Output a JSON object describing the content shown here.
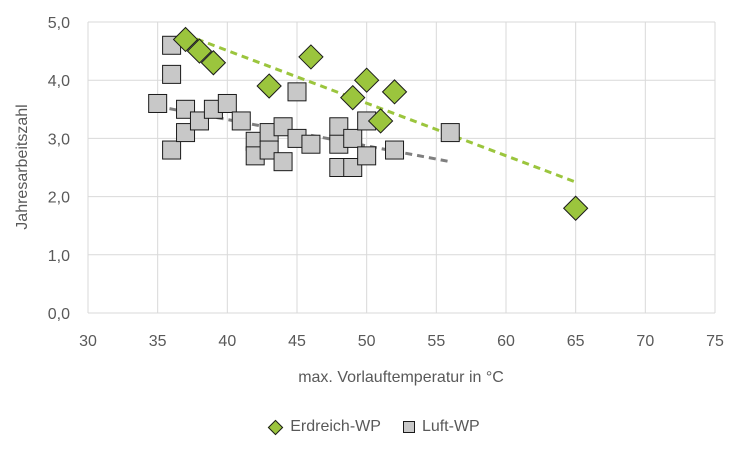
{
  "chart_data": {
    "type": "scatter",
    "xlabel": "max. Vorlauftemperatur in °C",
    "ylabel": "Jahresarbeitszahl",
    "xlim": [
      30,
      75
    ],
    "ylim": [
      0,
      5
    ],
    "x_ticks": [
      "30",
      "35",
      "40",
      "45",
      "50",
      "55",
      "60",
      "65",
      "70",
      "75"
    ],
    "y_ticks": [
      "0,0",
      "1,0",
      "2,0",
      "3,0",
      "4,0",
      "5,0"
    ],
    "grid": "vertical and horizontal",
    "legend_position": "bottom",
    "series": [
      {
        "name": "Erdreich-WP",
        "marker": "diamond",
        "color": "#9bc53d",
        "points": [
          [
            37,
            4.7
          ],
          [
            38,
            4.5
          ],
          [
            39,
            4.3
          ],
          [
            43,
            3.9
          ],
          [
            46,
            4.4
          ],
          [
            49,
            3.7
          ],
          [
            50,
            4.0
          ],
          [
            51,
            3.3
          ],
          [
            52,
            3.8
          ],
          [
            65,
            1.8
          ]
        ],
        "trendline": [
          [
            37,
            4.78
          ],
          [
            65,
            2.25
          ]
        ]
      },
      {
        "name": "Luft-WP",
        "marker": "square",
        "color": "#c8c8c8",
        "points": [
          [
            35,
            3.6
          ],
          [
            36,
            4.6
          ],
          [
            36,
            4.1
          ],
          [
            36,
            2.8
          ],
          [
            37,
            3.5
          ],
          [
            37,
            3.1
          ],
          [
            38,
            3.3
          ],
          [
            39,
            3.5
          ],
          [
            40,
            3.6
          ],
          [
            41,
            3.3
          ],
          [
            42,
            2.95
          ],
          [
            42,
            2.7
          ],
          [
            43,
            3.1
          ],
          [
            43,
            2.8
          ],
          [
            44,
            3.2
          ],
          [
            44,
            2.6
          ],
          [
            45,
            3.0
          ],
          [
            45,
            3.8
          ],
          [
            46,
            2.9
          ],
          [
            48,
            3.2
          ],
          [
            48,
            2.9
          ],
          [
            48,
            2.5
          ],
          [
            49,
            2.5
          ],
          [
            49,
            3.0
          ],
          [
            50,
            2.7
          ],
          [
            50,
            3.3
          ],
          [
            52,
            2.8
          ],
          [
            56,
            3.1
          ]
        ],
        "trendline": [
          [
            35,
            3.55
          ],
          [
            56,
            2.6
          ]
        ]
      }
    ]
  }
}
